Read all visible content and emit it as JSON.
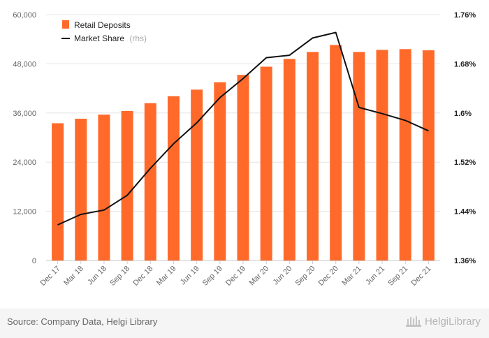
{
  "chart_data": {
    "type": "bar",
    "categories": [
      "Dec 17",
      "Mar 18",
      "Jun 18",
      "Sep 18",
      "Dec 18",
      "Mar 19",
      "Jun 19",
      "Sep 19",
      "Dec 19",
      "Mar 20",
      "Jun 20",
      "Sep 20",
      "Dec 20",
      "Mar 21",
      "Jun 21",
      "Sep 21",
      "Dec 21"
    ],
    "series": [
      {
        "name": "Retail Deposits",
        "type": "bar",
        "axis": "left",
        "color": "#ff6a2b",
        "values": [
          33500,
          34600,
          35600,
          36500,
          38400,
          40100,
          41700,
          43500,
          45300,
          47300,
          49200,
          50900,
          52600,
          50900,
          51400,
          51600,
          51300
        ]
      },
      {
        "name": "Market Share",
        "type": "line",
        "axis": "right",
        "color": "#111111",
        "values": [
          1.418,
          1.435,
          1.442,
          1.466,
          1.51,
          1.55,
          1.584,
          1.625,
          1.656,
          1.69,
          1.694,
          1.722,
          1.731,
          1.609,
          1.599,
          1.588,
          1.571
        ]
      }
    ],
    "legend": {
      "items": [
        "Retail Deposits",
        "Market Share"
      ],
      "rhs_note": "(rhs)",
      "position": "top-left"
    },
    "y_left": {
      "min": 0,
      "max": 60000,
      "ticks": [
        "0",
        "12,000",
        "24,000",
        "36,000",
        "48,000",
        "60,000"
      ]
    },
    "y_right": {
      "min": 1.36,
      "max": 1.76,
      "ticks": [
        "1.36%",
        "1.44%",
        "1.52%",
        "1.6%",
        "1.68%",
        "1.76%"
      ]
    },
    "grid": true
  },
  "footer": {
    "source": "Source: Company Data, Helgi Library",
    "logo_text": "HelgiLibrary"
  }
}
